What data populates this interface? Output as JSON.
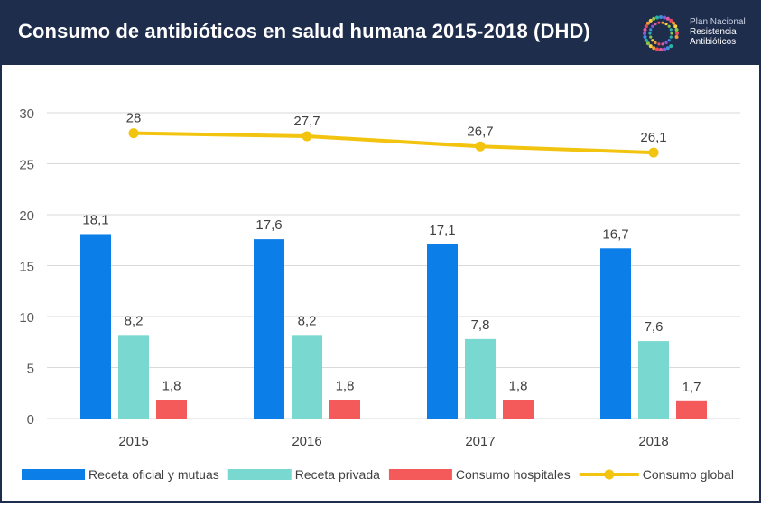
{
  "header": {
    "title": "Consumo de antibióticos en salud humana 2015-2018 (DHD)",
    "logo_lines": [
      "Plan Nacional",
      "Resistencia",
      "Antibióticos"
    ],
    "background": "#1f2d4d"
  },
  "chart_data": {
    "type": "bar",
    "title": "Consumo de antibióticos en salud humana 2015-2018 (DHD)",
    "xlabel": "",
    "ylabel": "",
    "categories": [
      "2015",
      "2016",
      "2017",
      "2018"
    ],
    "ylim": [
      0,
      30
    ],
    "yticks": [
      0,
      5,
      10,
      15,
      20,
      25,
      30
    ],
    "grid": true,
    "legend_position": "bottom",
    "series": [
      {
        "name": "Receta oficial y mutuas",
        "type": "bar",
        "color": "#0b7ee8",
        "values": [
          18.1,
          17.6,
          17.1,
          16.7
        ],
        "labels": [
          "18,1",
          "17,6",
          "17,1",
          "16,7"
        ]
      },
      {
        "name": "Receta privada",
        "type": "bar",
        "color": "#79d8d0",
        "values": [
          8.2,
          8.2,
          7.8,
          7.6
        ],
        "labels": [
          "8,2",
          "8,2",
          "7,8",
          "7,6"
        ]
      },
      {
        "name": "Consumo hospitales",
        "type": "bar",
        "color": "#f45a5a",
        "values": [
          1.8,
          1.8,
          1.8,
          1.7
        ],
        "labels": [
          "1,8",
          "1,8",
          "1,8",
          "1,7"
        ]
      },
      {
        "name": "Consumo global",
        "type": "line",
        "color": "#f2c40f",
        "values": [
          28,
          27.7,
          26.7,
          26.1
        ],
        "labels": [
          "28",
          "27,7",
          "26,7",
          "26,1"
        ]
      }
    ]
  }
}
